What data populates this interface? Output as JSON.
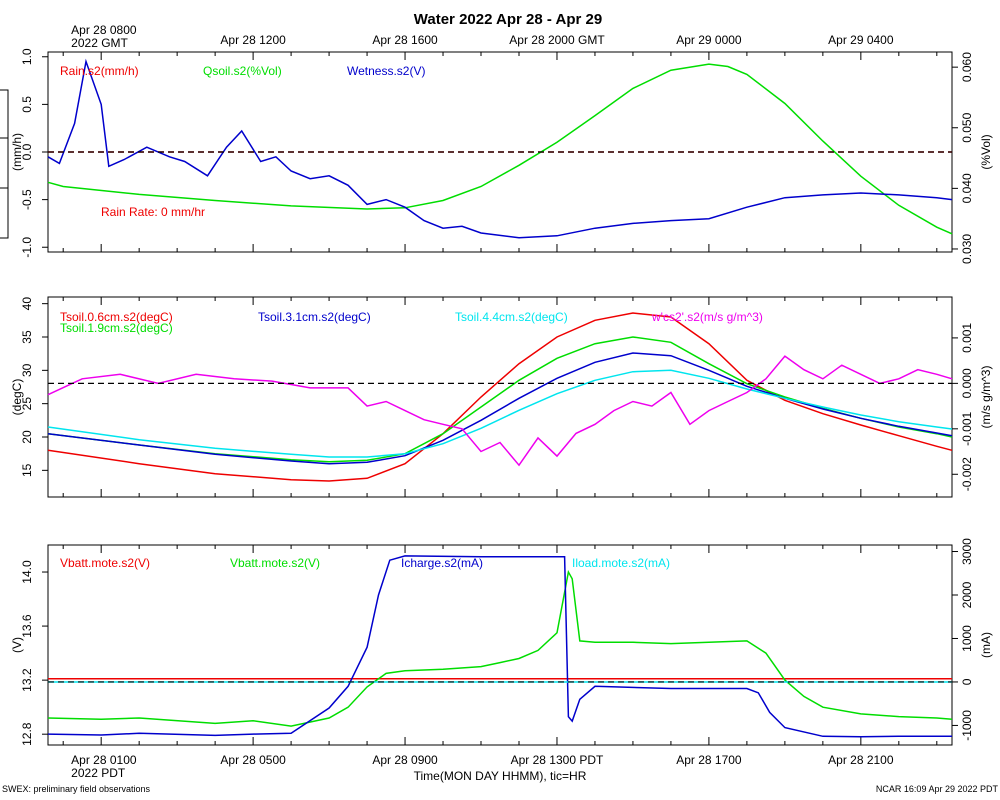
{
  "figure": {
    "title": "Water 2022 Apr 28 - Apr 29",
    "top_time_labels": [
      "Apr 28 0800\n2022 GMT",
      "Apr 28 1200",
      "Apr 28 1600",
      "Apr 28 2000 GMT",
      "Apr 29 0000",
      "Apr 29 0400"
    ],
    "bottom_time_labels": [
      "Apr 28 0100\n2022 PDT",
      "Apr 28 0500",
      "Apr 28 0900",
      "Apr 28 1300 PDT",
      "Apr 28 1700",
      "Apr 28 2100"
    ],
    "xlabel": "Time(MON DAY HHMM), tic=HR",
    "footer_left": "SWEX: preliminary field observations",
    "footer_right": "NCAR 16:09 Apr 29 2022 PDT"
  },
  "colors": {
    "red": "#ee0000",
    "green": "#00dd00",
    "blue": "#0000cc",
    "cyan": "#00e5ee",
    "magenta": "#ee00ee",
    "black": "#000000"
  },
  "chart_data": [
    {
      "type": "line",
      "panel": "top",
      "time_range_hours_pdt": [
        23.6,
        47.4
      ],
      "ylabel_left": "(mm/h)",
      "ylabel_right": "(%Vol)",
      "ylim_left": [
        -1.05,
        1.05
      ],
      "ylim_right": [
        0.0295,
        0.0625
      ],
      "yticks_left": [
        "1.0",
        "0.5",
        "0.0",
        "-0.5",
        "-1.0"
      ],
      "yticks_right": [
        "0.060",
        "0.050",
        "0.040",
        "0.030"
      ],
      "annotation": "Rain Rate: 0 mm/hr",
      "series": [
        {
          "name": "Rain.s2(mm/h)",
          "axis": "left",
          "color": "red",
          "x": [
            23.6,
            47.4
          ],
          "y": [
            0.0,
            0.0
          ]
        },
        {
          "name": "Qsoil.s2(%Vol)",
          "axis": "right",
          "color": "green",
          "x": [
            23.6,
            24,
            26,
            28,
            30,
            32,
            33,
            34,
            35,
            36,
            37,
            38,
            39,
            40,
            41,
            41.5,
            42,
            43,
            44,
            45,
            46,
            47,
            47.4
          ],
          "y": [
            0.041,
            0.0403,
            0.039,
            0.038,
            0.0371,
            0.0366,
            0.0368,
            0.038,
            0.0403,
            0.0438,
            0.0476,
            0.052,
            0.0565,
            0.0595,
            0.0605,
            0.0601,
            0.0588,
            0.054,
            0.0478,
            0.042,
            0.0372,
            0.0336,
            0.0325
          ]
        },
        {
          "name": "Wetness.s2(V)",
          "axis": "left",
          "color": "blue",
          "x": [
            23.6,
            23.9,
            24.3,
            24.6,
            25.0,
            25.2,
            25.6,
            26.2,
            26.8,
            27.2,
            27.8,
            28.3,
            28.7,
            29.2,
            29.6,
            30.0,
            30.5,
            31.0,
            31.5,
            32.0,
            32.5,
            33.0,
            33.5,
            34.0,
            34.5,
            35.0,
            36.0,
            37.0,
            38.0,
            39.0,
            40.0,
            41.0,
            42.0,
            43.0,
            44.0,
            45.0,
            46.0,
            47.0,
            47.4
          ],
          "y": [
            -0.05,
            -0.12,
            0.3,
            0.95,
            0.5,
            -0.15,
            -0.08,
            0.05,
            -0.05,
            -0.1,
            -0.25,
            0.05,
            0.22,
            -0.1,
            -0.05,
            -0.2,
            -0.28,
            -0.25,
            -0.35,
            -0.55,
            -0.5,
            -0.58,
            -0.72,
            -0.8,
            -0.78,
            -0.85,
            -0.9,
            -0.88,
            -0.8,
            -0.75,
            -0.72,
            -0.7,
            -0.58,
            -0.48,
            -0.45,
            -0.43,
            -0.45,
            -0.48,
            -0.5
          ]
        }
      ]
    },
    {
      "type": "line",
      "panel": "middle",
      "time_range_hours_pdt": [
        23.6,
        47.4
      ],
      "ylabel_left": "(degC)",
      "ylabel_right": "(m/s g/m^3)",
      "ylim_left": [
        11,
        41
      ],
      "ylim_right": [
        -0.0025,
        0.0019
      ],
      "yticks_left": [
        "40",
        "35",
        "30",
        "25",
        "20",
        "15"
      ],
      "yticks_right": [
        "0.001",
        "0.000",
        "-0.001",
        "-0.002"
      ],
      "series": [
        {
          "name": "Tsoil.0.6cm.s2(degC)",
          "axis": "left",
          "color": "red",
          "x": [
            23.6,
            26,
            28,
            30,
            31,
            32,
            33,
            34,
            35,
            36,
            37,
            38,
            39,
            40,
            41,
            42,
            43,
            44,
            45,
            46,
            47,
            47.4
          ],
          "y": [
            18.0,
            16.0,
            14.5,
            13.6,
            13.4,
            13.8,
            16.0,
            20.5,
            26.0,
            31.0,
            35.0,
            37.5,
            38.6,
            38.0,
            34.0,
            28.5,
            25.5,
            23.5,
            21.8,
            20.2,
            18.6,
            18.0
          ]
        },
        {
          "name": "Tsoil.1.9cm.s2(degC)",
          "axis": "left",
          "color": "green",
          "x": [
            23.6,
            26,
            28,
            30,
            31,
            32,
            33,
            34,
            35,
            36,
            37,
            38,
            39,
            40,
            41,
            42,
            43,
            44,
            45,
            46,
            47,
            47.4
          ],
          "y": [
            20.5,
            18.8,
            17.5,
            16.6,
            16.3,
            16.5,
            17.5,
            20.5,
            24.5,
            28.5,
            31.8,
            34.0,
            35.0,
            34.2,
            31.0,
            28.0,
            26.0,
            24.3,
            22.8,
            21.5,
            20.5,
            20.0
          ]
        },
        {
          "name": "Tsoil.3.1cm.s2(degC)",
          "axis": "left",
          "color": "blue",
          "x": [
            23.6,
            26,
            28,
            30,
            31,
            32,
            33,
            34,
            35,
            36,
            37,
            38,
            39,
            40,
            41,
            42,
            43,
            44,
            45,
            46,
            47,
            47.4
          ],
          "y": [
            20.5,
            18.8,
            17.4,
            16.4,
            16.0,
            16.2,
            17.2,
            19.5,
            22.5,
            25.8,
            28.8,
            31.2,
            32.6,
            32.2,
            30.0,
            27.6,
            25.8,
            24.2,
            22.8,
            21.6,
            20.6,
            20.2
          ]
        },
        {
          "name": "Tsoil.4.4cm.s2(degC)",
          "axis": "left",
          "color": "cyan",
          "x": [
            23.6,
            26,
            28,
            30,
            31,
            32,
            33,
            34,
            35,
            36,
            37,
            38,
            39,
            40,
            41,
            42,
            43,
            44,
            45,
            46,
            47,
            47.4
          ],
          "y": [
            21.5,
            19.6,
            18.3,
            17.4,
            17.0,
            17.0,
            17.5,
            19.0,
            21.3,
            24.0,
            26.5,
            28.5,
            29.8,
            30.0,
            28.8,
            27.2,
            25.8,
            24.5,
            23.3,
            22.3,
            21.5,
            21.2
          ]
        },
        {
          "name": "w'cs2'.s2(m/s g/m^3)",
          "axis": "right",
          "color": "magenta",
          "x": [
            23.6,
            24.5,
            25.5,
            26.5,
            27.5,
            28.5,
            29.5,
            30.5,
            31.5,
            32.0,
            32.5,
            33.0,
            33.5,
            34.0,
            34.5,
            35.0,
            35.5,
            36.0,
            36.5,
            37.0,
            37.5,
            38.0,
            38.5,
            39.0,
            39.5,
            40.0,
            40.5,
            41.0,
            41.5,
            42.0,
            42.5,
            43.0,
            43.5,
            44.0,
            44.5,
            45.0,
            45.5,
            46.0,
            46.5,
            47.0,
            47.4
          ],
          "y": [
            -0.00025,
            0.0001,
            0.0002,
            0.0,
            0.0002,
            0.0001,
            5e-05,
            -0.0001,
            -0.0001,
            -0.0005,
            -0.0004,
            -0.0006,
            -0.0008,
            -0.0009,
            -0.001,
            -0.0015,
            -0.0013,
            -0.0018,
            -0.0012,
            -0.0016,
            -0.0011,
            -0.0009,
            -0.0006,
            -0.0004,
            -0.0005,
            -0.0002,
            -0.0009,
            -0.0006,
            -0.0004,
            -0.0002,
            0.0001,
            0.0006,
            0.0003,
            0.0001,
            0.0004,
            0.0002,
            0.0,
            0.0001,
            0.0003,
            0.0002,
            0.0001
          ]
        }
      ]
    },
    {
      "type": "line",
      "panel": "bottom",
      "time_range_hours_pdt": [
        23.6,
        47.4
      ],
      "ylabel_left": "(V)",
      "ylabel_right": "(mA)",
      "ylim_left": [
        12.72,
        14.2
      ],
      "ylim_right": [
        -1450,
        3150
      ],
      "yticks_left": [
        "14.0",
        "13.6",
        "13.2",
        "12.8"
      ],
      "yticks_right": [
        "3000",
        "2000",
        "1000",
        "0",
        "-1000"
      ],
      "series": [
        {
          "name": "Vbatt.mote.s2(V)",
          "axis": "left",
          "color": "red",
          "x": [
            23.6,
            47.4
          ],
          "y": [
            13.21,
            13.21
          ]
        },
        {
          "name": "Vbatt.mote.s2(V)",
          "axis": "left",
          "color": "green",
          "x": [
            23.6,
            25,
            26,
            28,
            29,
            30,
            31,
            31.5,
            32,
            32.5,
            33,
            34,
            35,
            35.5,
            36,
            36.5,
            37,
            37.3,
            37.4,
            37.6,
            38,
            39,
            40,
            41,
            42,
            42.5,
            43,
            43.5,
            44,
            45,
            46,
            47,
            47.4
          ],
          "y": [
            12.92,
            12.91,
            12.92,
            12.88,
            12.9,
            12.86,
            12.92,
            13.0,
            13.15,
            13.25,
            13.27,
            13.28,
            13.3,
            13.33,
            13.36,
            13.42,
            13.55,
            14.0,
            13.95,
            13.49,
            13.48,
            13.48,
            13.47,
            13.48,
            13.49,
            13.4,
            13.2,
            13.08,
            13.0,
            12.95,
            12.93,
            12.92,
            12.91
          ]
        },
        {
          "name": "Icharge.s2(mA)",
          "axis": "right",
          "color": "blue",
          "x": [
            23.6,
            25,
            26,
            28,
            29,
            30,
            31,
            31.5,
            32,
            32.3,
            32.6,
            33.0,
            35,
            36,
            37,
            37.2,
            37.3,
            37.4,
            37.6,
            38.0,
            40,
            41,
            42,
            42.3,
            42.6,
            43,
            44,
            45,
            46,
            47,
            47.4
          ],
          "y": [
            -1200,
            -1220,
            -1180,
            -1230,
            -1200,
            -1180,
            -600,
            -100,
            800,
            2000,
            2800,
            2900,
            2880,
            2880,
            2880,
            2880,
            -800,
            -900,
            -400,
            -100,
            -150,
            -150,
            -150,
            -250,
            -700,
            -1050,
            -1250,
            -1260,
            -1250,
            -1250,
            -1250
          ]
        },
        {
          "name": "Iload.mote.s2(mA)",
          "axis": "right",
          "color": "cyan",
          "x": [
            23.6,
            47.4
          ],
          "y": [
            0,
            0
          ]
        }
      ]
    }
  ]
}
